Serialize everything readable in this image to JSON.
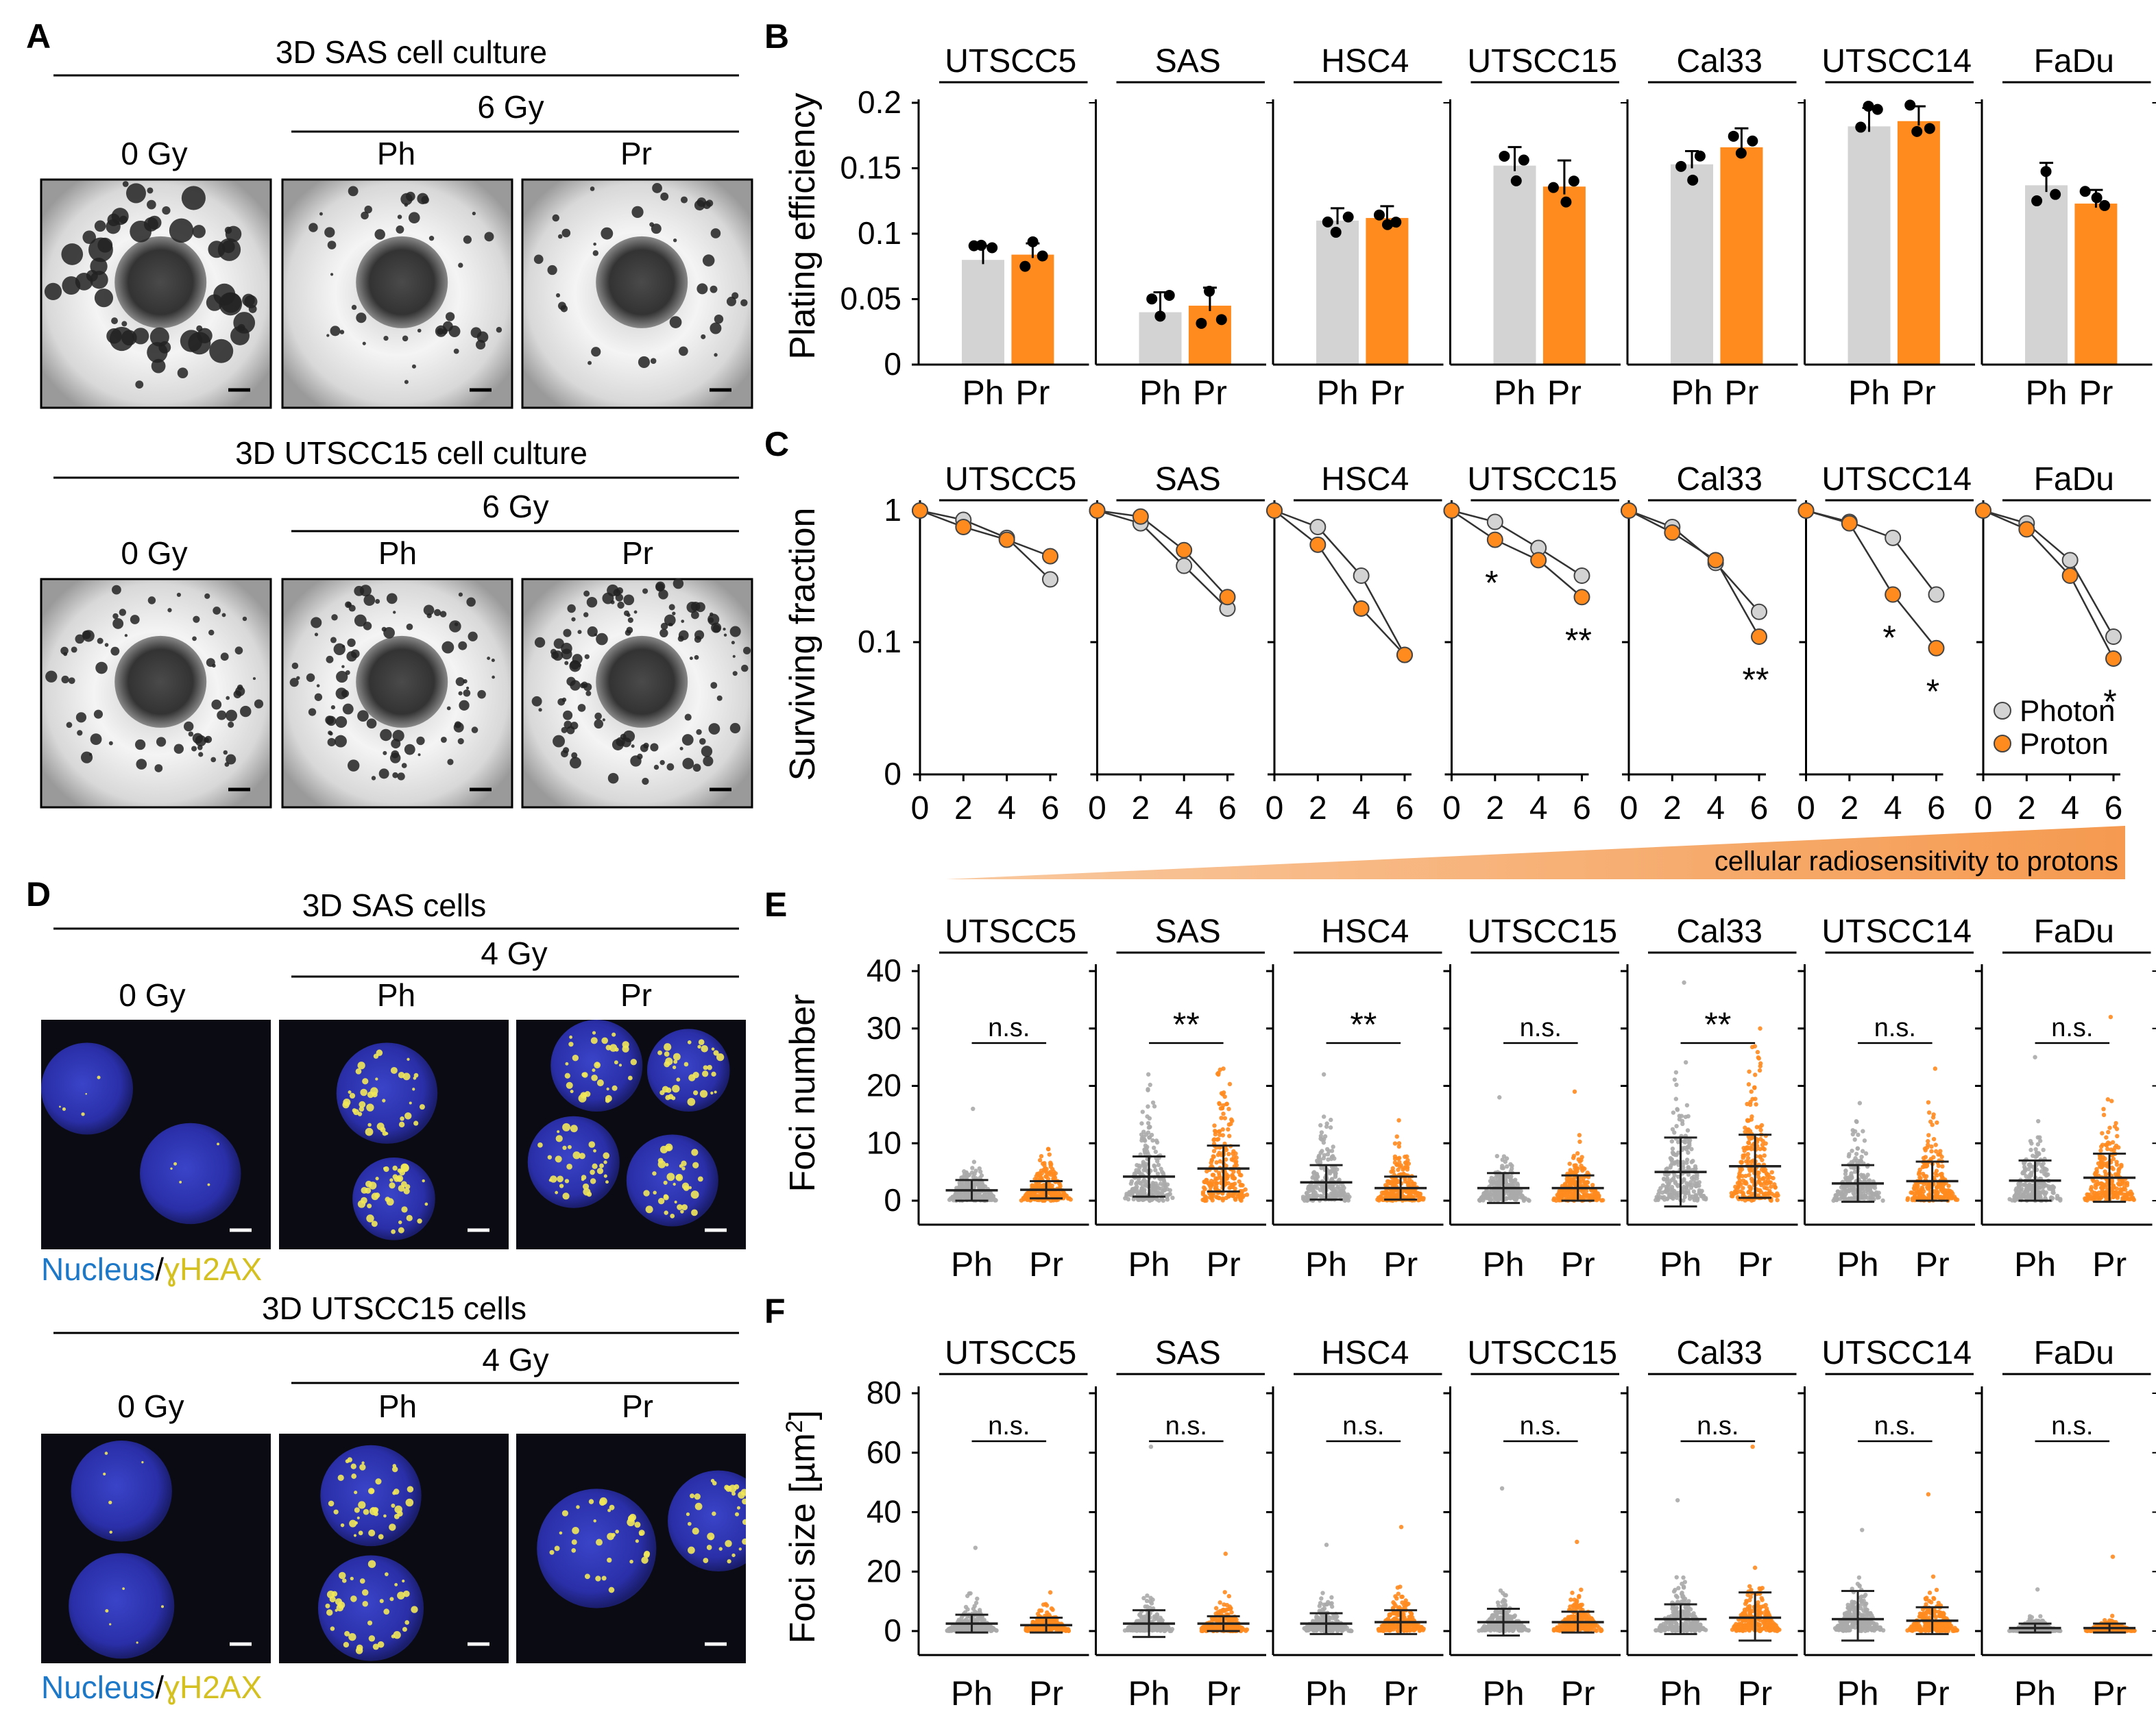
{
  "panels": {
    "A": {
      "letter": "A",
      "top": {
        "title": "3D SAS cell culture",
        "dose": "6 Gy",
        "labels": [
          "0 Gy",
          "Ph",
          "Pr"
        ]
      },
      "bottom": {
        "title": "3D UTSCC15 cell culture",
        "dose": "6 Gy",
        "labels": [
          "0 Gy",
          "Ph",
          "Pr"
        ]
      }
    },
    "D": {
      "letter": "D",
      "top": {
        "title": "3D SAS cells",
        "dose": "4 Gy",
        "labels": [
          "0 Gy",
          "Ph",
          "Pr"
        ]
      },
      "bottom": {
        "title": "3D UTSCC15 cells",
        "dose": "4 Gy",
        "labels": [
          "0 Gy",
          "Ph",
          "Pr"
        ]
      },
      "stain_nucleus": "Nucleus",
      "stain_sep": "/",
      "stain_marker": "ɣH2AX"
    },
    "B": {
      "letter": "B"
    },
    "C": {
      "letter": "C"
    },
    "E": {
      "letter": "E"
    },
    "F": {
      "letter": "F"
    },
    "gradient_label": "cellular radiosensitivity to protons"
  },
  "colors": {
    "photon": "#d3d3d3",
    "proton": "#ff8a1e",
    "nucleus": "#1e78c8",
    "marker": "#d4c020",
    "gradient": "#f5a05a"
  },
  "cell_lines": [
    "UTSCC5",
    "SAS",
    "HSC4",
    "UTSCC15",
    "Cal33",
    "UTSCC14",
    "FaDu"
  ],
  "chart_data": [
    {
      "panel": "B",
      "type": "bar",
      "ylabel": "Plating efficiency",
      "categories": [
        "Ph",
        "Pr"
      ],
      "ylim": [
        0,
        0.2
      ],
      "yticks": [
        "0",
        "0.05",
        "0.1",
        "0.15",
        "0.2"
      ],
      "series": [
        {
          "name": "UTSCC5",
          "values": [
            0.08,
            0.084
          ]
        },
        {
          "name": "SAS",
          "values": [
            0.04,
            0.045
          ]
        },
        {
          "name": "HSC4",
          "values": [
            0.11,
            0.112
          ]
        },
        {
          "name": "UTSCC15",
          "values": [
            0.152,
            0.136
          ]
        },
        {
          "name": "Cal33",
          "values": [
            0.153,
            0.166
          ]
        },
        {
          "name": "UTSCC14",
          "values": [
            0.182,
            0.186
          ]
        },
        {
          "name": "FaDu",
          "values": [
            0.137,
            0.123
          ]
        }
      ]
    },
    {
      "panel": "C",
      "type": "line",
      "ylabel": "Surviving fraction",
      "x": [
        0,
        2,
        4,
        6
      ],
      "xticks": [
        "0",
        "2",
        "4",
        "6"
      ],
      "yscale": "log",
      "yticks": [
        "1",
        "0.1",
        "0"
      ],
      "legend": [
        "Photon",
        "Proton"
      ],
      "legend_position": "bottom-right",
      "groups": [
        {
          "name": "UTSCC5",
          "photon": [
            1,
            0.85,
            0.62,
            0.3
          ],
          "proton": [
            1,
            0.75,
            0.6,
            0.45
          ],
          "stars": []
        },
        {
          "name": "SAS",
          "photon": [
            1,
            0.8,
            0.38,
            0.18
          ],
          "proton": [
            1,
            0.9,
            0.5,
            0.22
          ],
          "stars": []
        },
        {
          "name": "HSC4",
          "photon": [
            1,
            0.75,
            0.32,
            0.08
          ],
          "proton": [
            1,
            0.55,
            0.18,
            0.08
          ],
          "stars": []
        },
        {
          "name": "UTSCC15",
          "photon": [
            1,
            0.82,
            0.52,
            0.32
          ],
          "proton": [
            1,
            0.6,
            0.42,
            0.22
          ],
          "stars": [
            {
              "label": "*",
              "x": 2
            },
            {
              "label": "**",
              "x": 6
            }
          ]
        },
        {
          "name": "Cal33",
          "photon": [
            1,
            0.75,
            0.4,
            0.17
          ],
          "proton": [
            1,
            0.68,
            0.42,
            0.11
          ],
          "stars": [
            {
              "label": "**",
              "x": 6
            }
          ]
        },
        {
          "name": "UTSCC14",
          "photon": [
            1,
            0.82,
            0.62,
            0.23
          ],
          "proton": [
            1,
            0.8,
            0.23,
            0.09
          ],
          "stars": [
            {
              "label": "*",
              "x": 4
            },
            {
              "label": "*",
              "x": 6
            }
          ]
        },
        {
          "name": "FaDu",
          "photon": [
            1,
            0.8,
            0.42,
            0.11
          ],
          "proton": [
            1,
            0.72,
            0.32,
            0.075
          ],
          "stars": [
            {
              "label": "*",
              "x": 6
            }
          ]
        }
      ]
    },
    {
      "panel": "E",
      "type": "scatter",
      "ylabel": "Foci number",
      "categories": [
        "Ph",
        "Pr"
      ],
      "ylim": [
        0,
        40
      ],
      "yticks": [
        "0",
        "10",
        "20",
        "30",
        "40"
      ],
      "groups": [
        {
          "name": "UTSCC5",
          "sig": "n.s.",
          "ph": {
            "mean": 1.8,
            "sd": 1.8,
            "max": 16
          },
          "pr": {
            "mean": 1.9,
            "sd": 1.5,
            "max": 9
          }
        },
        {
          "name": "SAS",
          "sig": "**",
          "ph": {
            "mean": 4.2,
            "sd": 3.5,
            "max": 22
          },
          "pr": {
            "mean": 5.6,
            "sd": 4.0,
            "max": 23
          }
        },
        {
          "name": "HSC4",
          "sig": "**",
          "ph": {
            "mean": 3.2,
            "sd": 3.0,
            "max": 22
          },
          "pr": {
            "mean": 2.2,
            "sd": 2.0,
            "max": 14
          }
        },
        {
          "name": "UTSCC15",
          "sig": "n.s.",
          "ph": {
            "mean": 2.2,
            "sd": 2.6,
            "max": 18
          },
          "pr": {
            "mean": 2.2,
            "sd": 2.2,
            "max": 19
          }
        },
        {
          "name": "Cal33",
          "sig": "**",
          "ph": {
            "mean": 5.0,
            "sd": 6.0,
            "max": 38
          },
          "pr": {
            "mean": 6.0,
            "sd": 5.5,
            "max": 30
          }
        },
        {
          "name": "UTSCC14",
          "sig": "n.s.",
          "ph": {
            "mean": 3.0,
            "sd": 3.2,
            "max": 17
          },
          "pr": {
            "mean": 3.4,
            "sd": 3.4,
            "max": 23
          }
        },
        {
          "name": "FaDu",
          "sig": "n.s.",
          "ph": {
            "mean": 3.5,
            "sd": 3.5,
            "max": 25
          },
          "pr": {
            "mean": 4.0,
            "sd": 4.2,
            "max": 32
          }
        }
      ]
    },
    {
      "panel": "F",
      "type": "scatter",
      "ylabel": "Foci size [µm",
      "ylabel_sup": "2",
      "ylabel_end": "]",
      "categories": [
        "Ph",
        "Pr"
      ],
      "ylim": [
        0,
        80
      ],
      "yticks": [
        "0",
        "20",
        "40",
        "60",
        "80"
      ],
      "groups": [
        {
          "name": "UTSCC5",
          "sig": "n.s.",
          "ph": {
            "mean": 2.5,
            "sd": 3.0,
            "max": 28
          },
          "pr": {
            "mean": 2.0,
            "sd": 2.5,
            "max": 13
          }
        },
        {
          "name": "SAS",
          "sig": "n.s.",
          "ph": {
            "mean": 2.5,
            "sd": 4.5,
            "max": 62
          },
          "pr": {
            "mean": 2.5,
            "sd": 2.5,
            "max": 26
          }
        },
        {
          "name": "HSC4",
          "sig": "n.s.",
          "ph": {
            "mean": 2.5,
            "sd": 3.5,
            "max": 29
          },
          "pr": {
            "mean": 3.0,
            "sd": 4.0,
            "max": 35
          }
        },
        {
          "name": "UTSCC15",
          "sig": "n.s.",
          "ph": {
            "mean": 3.0,
            "sd": 4.5,
            "max": 48
          },
          "pr": {
            "mean": 3.0,
            "sd": 3.5,
            "max": 30
          }
        },
        {
          "name": "Cal33",
          "sig": "n.s.",
          "ph": {
            "mean": 4.0,
            "sd": 5.0,
            "max": 44
          },
          "pr": {
            "mean": 4.5,
            "sd": 8.5,
            "max": 62
          }
        },
        {
          "name": "UTSCC14",
          "sig": "n.s.",
          "ph": {
            "mean": 4.0,
            "sd": 9.5,
            "max": 34
          },
          "pr": {
            "mean": 3.5,
            "sd": 4.5,
            "max": 46
          }
        },
        {
          "name": "FaDu",
          "sig": "n.s.",
          "ph": {
            "mean": 1.0,
            "sd": 1.5,
            "max": 14
          },
          "pr": {
            "mean": 1.0,
            "sd": 1.5,
            "max": 25
          }
        }
      ]
    }
  ]
}
